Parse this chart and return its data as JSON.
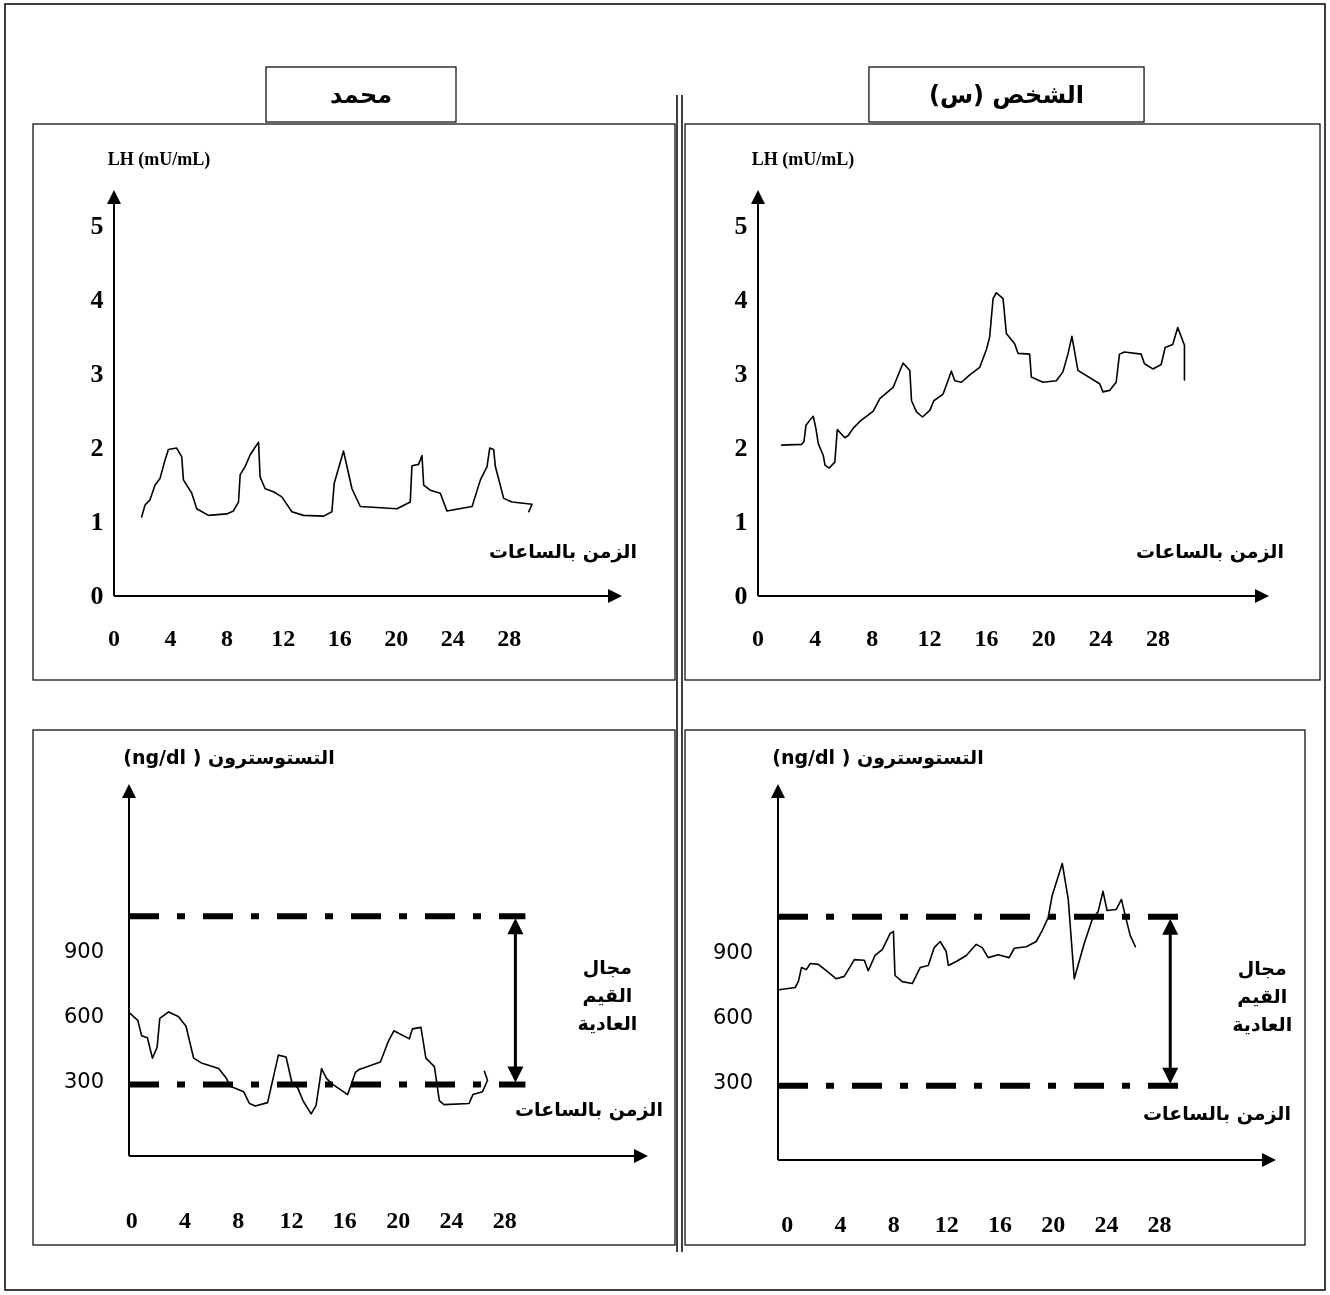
{
  "chart_data": [
    {
      "type": "line",
      "title": "محمد",
      "ylabel": "LH (mU/mL)",
      "xlabel": "الزمن بالساعات",
      "xlim": [
        0,
        35
      ],
      "ylim": [
        0,
        5.3
      ],
      "xticks": [
        0,
        4,
        8,
        12,
        16,
        20,
        24,
        28
      ],
      "yticks": [
        0,
        1,
        2,
        3,
        4,
        5
      ],
      "grid": false,
      "series": [
        {
          "color": "#000000",
          "x": [
            1.96,
            2.2,
            2.55,
            2.91,
            3.26,
            3.62,
            3.85,
            4.44,
            4.8,
            4.92,
            5.15,
            5.51,
            5.86,
            6.69,
            7.99,
            8.46,
            8.82,
            8.94,
            9.29,
            9.65,
            10.24,
            10.35,
            10.71,
            11.3,
            11.89,
            12.6,
            13.43,
            14.85,
            15.44,
            15.6,
            16.26,
            16.86,
            17.45,
            20.05,
            20.99,
            21.11,
            21.58,
            21.82,
            21.94,
            22.41,
            23.12,
            23.59,
            25.37,
            25.96,
            26.43,
            26.62,
            26.9,
            27.02,
            27.61,
            28.2,
            29.62,
            29.39
          ],
          "values": [
            1.07,
            1.23,
            1.3,
            1.5,
            1.59,
            1.84,
            1.98,
            2.0,
            1.88,
            1.57,
            1.5,
            1.39,
            1.18,
            1.09,
            1.11,
            1.15,
            1.27,
            1.64,
            1.75,
            1.91,
            2.08,
            1.61,
            1.45,
            1.41,
            1.34,
            1.14,
            1.09,
            1.08,
            1.14,
            1.52,
            1.96,
            1.45,
            1.21,
            1.18,
            1.27,
            1.76,
            1.78,
            1.9,
            1.5,
            1.43,
            1.39,
            1.15,
            1.21,
            1.57,
            1.75,
            2.0,
            1.98,
            1.75,
            1.32,
            1.27,
            1.24,
            1.14
          ]
        }
      ]
    },
    {
      "type": "line",
      "title": "الشخص (س)",
      "ylabel": "LH (mU/mL)",
      "xlabel": "الزمن بالساعات",
      "xlim": [
        0,
        34.8
      ],
      "ylim": [
        0,
        5.3
      ],
      "xticks": [
        0,
        4,
        8,
        12,
        16,
        20,
        24,
        28
      ],
      "yticks": [
        0,
        1,
        2,
        3,
        4,
        5
      ],
      "grid": false,
      "series": [
        {
          "color": "#000000",
          "x": [
            1.66,
            3.05,
            3.22,
            3.36,
            3.64,
            3.87,
            4.06,
            4.22,
            4.57,
            4.69,
            4.99,
            5.38,
            5.55,
            6.08,
            6.32,
            6.67,
            7.13,
            8.07,
            8.53,
            9.46,
            10.16,
            10.63,
            10.75,
            11.1,
            11.52,
            12.03,
            12.31,
            12.96,
            13.54,
            13.78,
            14.24,
            14.83,
            15.52,
            15.99,
            16.22,
            16.46,
            16.69,
            17.16,
            17.39,
            17.97,
            18.21,
            19.02,
            19.14,
            19.95,
            20.89,
            21.35,
            21.7,
            21.98,
            22.4,
            23.92,
            24.15,
            24.62,
            25.08,
            25.31,
            25.66,
            26.83,
            27.06,
            27.65,
            28.23,
            28.51,
            29.04,
            29.39,
            29.86,
            29.86
          ],
          "values": [
            2.04,
            2.05,
            2.09,
            2.31,
            2.38,
            2.43,
            2.26,
            2.06,
            1.9,
            1.77,
            1.73,
            1.81,
            2.25,
            2.14,
            2.17,
            2.27,
            2.36,
            2.5,
            2.67,
            2.82,
            3.15,
            3.05,
            2.64,
            2.49,
            2.42,
            2.51,
            2.64,
            2.73,
            3.04,
            2.91,
            2.89,
            2.99,
            3.09,
            3.33,
            3.5,
            4.02,
            4.1,
            4.02,
            3.55,
            3.41,
            3.28,
            3.27,
            2.96,
            2.89,
            2.91,
            3.03,
            3.27,
            3.51,
            3.05,
            2.87,
            2.76,
            2.78,
            2.89,
            3.27,
            3.3,
            3.27,
            3.14,
            3.07,
            3.13,
            3.36,
            3.4,
            3.63,
            3.39,
            2.92
          ]
        }
      ]
    },
    {
      "type": "line",
      "ylabel": "التستوسترون ( ng/dl)",
      "xlabel": "الزمن بالساعات",
      "xlim": [
        -0.2,
        37.7
      ],
      "ylim": [
        -50,
        1600
      ],
      "xticks": [
        0,
        4,
        8,
        12,
        16,
        20,
        24,
        28
      ],
      "yticks": [
        300,
        600,
        900
      ],
      "grid": false,
      "ref_lines": [
        {
          "axis": "y",
          "value": 1055,
          "color": "#000000",
          "line_style": "dashed"
        },
        {
          "axis": "y",
          "value": 280,
          "color": "#000000",
          "line_style": "dashed"
        }
      ],
      "annotations": [
        "مجال القيم العادية"
      ],
      "series": [
        {
          "color": "#000000",
          "x": [
            -0.12,
            0.46,
            0.75,
            1.18,
            1.56,
            1.91,
            2.11,
            2.77,
            3.5,
            4.08,
            4.65,
            5.23,
            6.53,
            7.11,
            7.4,
            8.41,
            8.84,
            9.28,
            10.2,
            11.01,
            11.59,
            12.02,
            12.46,
            12.89,
            13.47,
            13.84,
            14.25,
            14.62,
            15.06,
            16.21,
            16.79,
            17.08,
            18.67,
            19.25,
            19.68,
            20.84,
            21.07,
            21.71,
            22.08,
            22.72,
            23.09,
            23.44,
            25.32,
            25.61,
            26.33,
            26.71,
            26.47
          ],
          "values": [
            607,
            575,
            504,
            495,
            401,
            451,
            584,
            614,
            593,
            548,
            401,
            379,
            353,
            308,
            272,
            246,
            192,
            180,
            196,
            415,
            406,
            290,
            264,
            201,
            144,
            183,
            353,
            308,
            281,
            233,
            335,
            349,
            383,
            477,
            527,
            490,
            536,
            543,
            401,
            362,
            205,
            187,
            192,
            233,
            246,
            299,
            340
          ]
        }
      ]
    },
    {
      "type": "line",
      "ylabel": "التستوسترون ( ng/dl)",
      "xlabel": "الزمن بالساعات",
      "xlim": [
        -0.7,
        35.7
      ],
      "ylim": [
        -60,
        1600
      ],
      "xticks": [
        0,
        4,
        8,
        12,
        16,
        20,
        24,
        28
      ],
      "yticks": [
        300,
        600,
        900
      ],
      "grid": false,
      "ref_lines": [
        {
          "axis": "y",
          "value": 1055,
          "color": "#000000",
          "line_style": "dashed"
        },
        {
          "axis": "y",
          "value": 280,
          "color": "#000000",
          "line_style": "dashed"
        }
      ],
      "annotations": [
        "مجال القيم العادية"
      ],
      "series": [
        {
          "color": "#000000",
          "x": [
            -0.62,
            0.59,
            0.83,
            1.07,
            1.43,
            1.73,
            2.33,
            2.93,
            3.68,
            4.29,
            5.04,
            5.79,
            6.09,
            6.6,
            7.14,
            7.74,
            7.98,
            8.1,
            8.65,
            9.4,
            10.0,
            10.6,
            11.05,
            11.5,
            11.95,
            12.11,
            12.71,
            13.46,
            14.21,
            14.66,
            15.11,
            15.86,
            16.68,
            17.07,
            17.97,
            18.72,
            19.17,
            19.62,
            19.92,
            20.68,
            21.13,
            21.58,
            22.33,
            22.93,
            23.38,
            23.74,
            24.05,
            24.74,
            25.13,
            25.34,
            25.79,
            26.18
          ],
          "values": [
            721,
            731,
            758,
            823,
            813,
            841,
            837,
            808,
            771,
            782,
            859,
            856,
            808,
            878,
            905,
            979,
            988,
            786,
            758,
            749,
            823,
            832,
            914,
            942,
            896,
            832,
            850,
            878,
            929,
            914,
            868,
            881,
            868,
            911,
            918,
            942,
            992,
            1052,
            1153,
            1300,
            1135,
            771,
            933,
            1043,
            1080,
            1172,
            1084,
            1089,
            1135,
            1080,
            969,
            918
          ]
        }
      ]
    }
  ]
}
